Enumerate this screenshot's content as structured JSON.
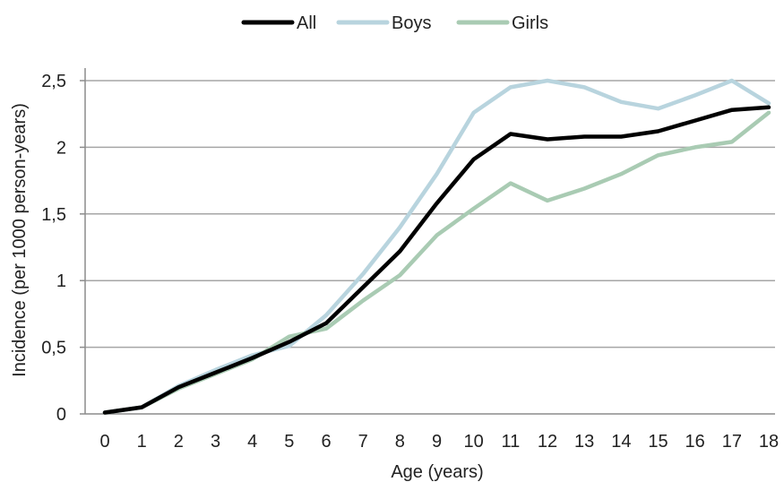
{
  "chart_data": {
    "type": "line",
    "title": "",
    "xlabel": "Age (years)",
    "ylabel": "Incidence (per 1000 person-years)",
    "x": [
      0,
      1,
      2,
      3,
      4,
      5,
      6,
      7,
      8,
      9,
      10,
      11,
      12,
      13,
      14,
      15,
      16,
      17,
      18
    ],
    "x_tick_labels": [
      "0",
      "1",
      "2",
      "3",
      "4",
      "5",
      "6",
      "7",
      "8",
      "9",
      "10",
      "11",
      "12",
      "13",
      "14",
      "15",
      "16",
      "17",
      "18"
    ],
    "y_ticks": [
      0,
      0.5,
      1,
      1.5,
      2,
      2.5
    ],
    "y_tick_labels": [
      "0",
      "0,5",
      "1",
      "1,5",
      "2",
      "2,5"
    ],
    "ylim": [
      0,
      2.5
    ],
    "grid": "horizontal",
    "legend_position": "top-center",
    "series": [
      {
        "name": "All",
        "color": "#000000",
        "values": [
          0.01,
          0.05,
          0.2,
          0.31,
          0.42,
          0.54,
          0.68,
          0.95,
          1.22,
          1.58,
          1.91,
          2.1,
          2.06,
          2.08,
          2.08,
          2.12,
          2.2,
          2.28,
          2.3
        ]
      },
      {
        "name": "Boys",
        "color": "#b8d4de",
        "values": [
          0.01,
          0.05,
          0.21,
          0.33,
          0.44,
          0.51,
          0.74,
          1.05,
          1.4,
          1.8,
          2.26,
          2.45,
          2.5,
          2.45,
          2.34,
          2.29,
          2.39,
          2.5,
          2.33
        ]
      },
      {
        "name": "Girls",
        "color": "#a9cbb3",
        "values": [
          0.01,
          0.05,
          0.19,
          0.3,
          0.41,
          0.58,
          0.64,
          0.85,
          1.04,
          1.34,
          1.54,
          1.73,
          1.6,
          1.69,
          1.8,
          1.94,
          2.0,
          2.04,
          2.26
        ]
      }
    ]
  }
}
